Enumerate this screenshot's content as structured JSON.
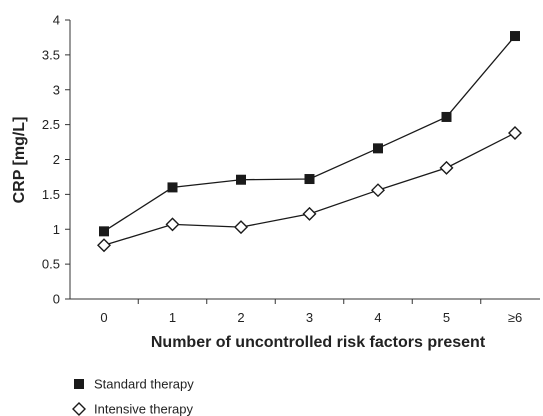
{
  "chart_data": {
    "type": "line",
    "title": "",
    "xlabel": "Number of uncontrolled risk factors present",
    "ylabel": "CRP [mg/L]",
    "categories": [
      "0",
      "1",
      "2",
      "3",
      "4",
      "5",
      "≥6"
    ],
    "ylim": [
      0,
      4
    ],
    "yticks": [
      "0",
      "0.5",
      "1",
      "1.5",
      "2",
      "2.5",
      "3",
      "3.5",
      "4"
    ],
    "grid": false,
    "legend_position": "bottom-left",
    "series": [
      {
        "name": "Standard therapy",
        "marker": "filled-square",
        "color": "#1a1a1a",
        "values": [
          0.97,
          1.6,
          1.71,
          1.72,
          2.16,
          2.61,
          3.77
        ]
      },
      {
        "name": "Intensive therapy",
        "marker": "open-diamond",
        "color": "#1a1a1a",
        "values": [
          0.77,
          1.07,
          1.03,
          1.22,
          1.56,
          1.88,
          2.38
        ]
      }
    ]
  }
}
